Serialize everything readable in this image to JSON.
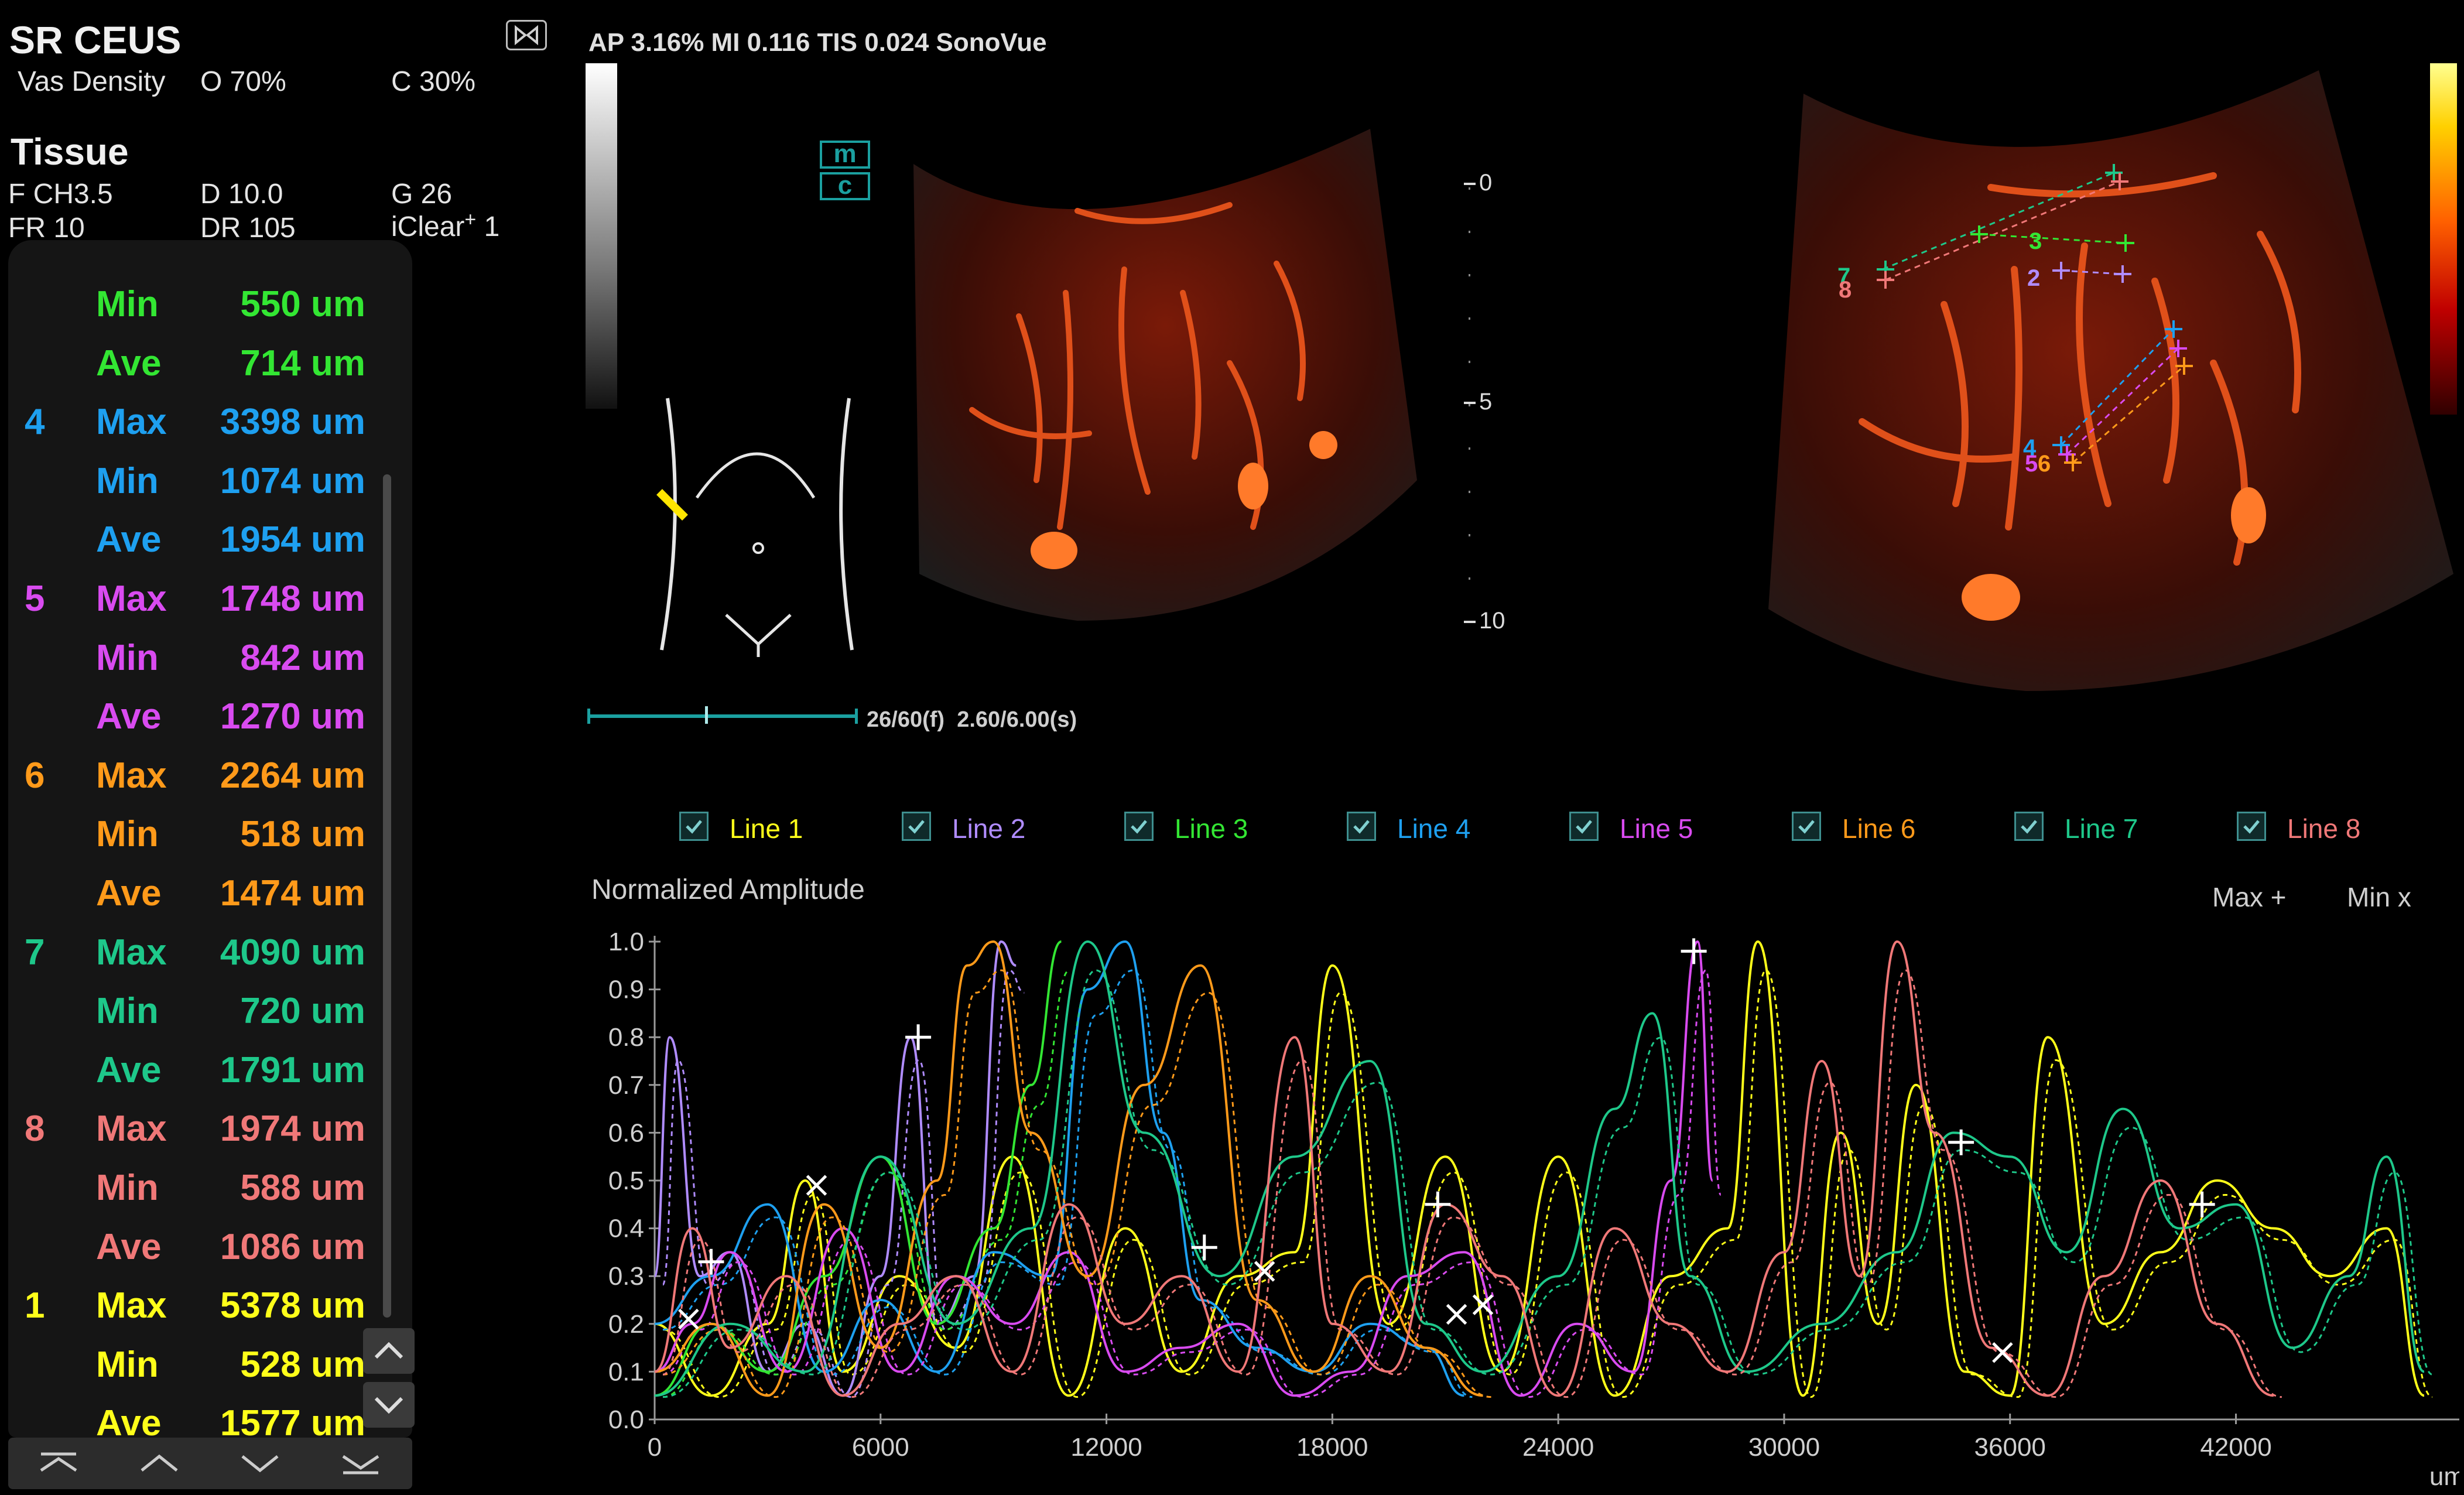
{
  "header": {
    "mode": "SR CEUS",
    "vas_density_label": "Vas Density",
    "o_value": "O 70%",
    "c_value": "C 30%",
    "tissue_title": "Tissue",
    "freq": "F CH3.5",
    "depth": "D 10.0",
    "gain": "G 26",
    "frame_rate": "FR 10",
    "dynamic_range": "DR 105",
    "iclear": "iClear",
    "iclear_sup": "+",
    "iclear_level": "1"
  },
  "measurements": [
    {
      "num": "",
      "label": "Min",
      "value": "550 um",
      "color": "#33e633"
    },
    {
      "num": "",
      "label": "Ave",
      "value": "714 um",
      "color": "#33e633"
    },
    {
      "num": "4",
      "label": "Max",
      "value": "3398 um",
      "color": "#1ea0f0"
    },
    {
      "num": "",
      "label": "Min",
      "value": "1074 um",
      "color": "#1ea0f0"
    },
    {
      "num": "",
      "label": "Ave",
      "value": "1954 um",
      "color": "#1ea0f0"
    },
    {
      "num": "5",
      "label": "Max",
      "value": "1748 um",
      "color": "#d94bf0"
    },
    {
      "num": "",
      "label": "Min",
      "value": "842 um",
      "color": "#d94bf0"
    },
    {
      "num": "",
      "label": "Ave",
      "value": "1270 um",
      "color": "#d94bf0"
    },
    {
      "num": "6",
      "label": "Max",
      "value": "2264 um",
      "color": "#ff9a1a"
    },
    {
      "num": "",
      "label": "Min",
      "value": "518 um",
      "color": "#ff9a1a"
    },
    {
      "num": "",
      "label": "Ave",
      "value": "1474 um",
      "color": "#ff9a1a"
    },
    {
      "num": "7",
      "label": "Max",
      "value": "4090 um",
      "color": "#1ec88a"
    },
    {
      "num": "",
      "label": "Min",
      "value": "720 um",
      "color": "#1ec88a"
    },
    {
      "num": "",
      "label": "Ave",
      "value": "1791 um",
      "color": "#1ec88a"
    },
    {
      "num": "8",
      "label": "Max",
      "value": "1974 um",
      "color": "#f07878"
    },
    {
      "num": "",
      "label": "Min",
      "value": "588 um",
      "color": "#f07878"
    },
    {
      "num": "",
      "label": "Ave",
      "value": "1086 um",
      "color": "#f07878"
    },
    {
      "num": "1",
      "label": "Max",
      "value": "5378 um",
      "color": "#ffff1a"
    },
    {
      "num": "",
      "label": "Min",
      "value": "528 um",
      "color": "#ffff1a"
    },
    {
      "num": "",
      "label": "Ave",
      "value": "1577 um",
      "color": "#ffff1a"
    }
  ],
  "info_bar": "AP 3.16%  MI 0.116 TIS 0.024  SonoVue",
  "logo_letters": [
    "m",
    "c"
  ],
  "depth_scale": [
    "0",
    "5",
    "10"
  ],
  "cine": {
    "frame": "26/60(f)",
    "time": "2.60/6.00(s)",
    "position": 0.433
  },
  "left_image_labels": [],
  "right_image_labels": [
    "7",
    "8",
    "3",
    "2",
    "4",
    "5",
    "6"
  ],
  "lines": [
    {
      "label": "Line 1",
      "color": "#ffff1a",
      "checked": true
    },
    {
      "label": "Line 2",
      "color": "#b08cff",
      "checked": true
    },
    {
      "label": "Line 3",
      "color": "#33e633",
      "checked": true
    },
    {
      "label": "Line 4",
      "color": "#1ea0f0",
      "checked": true
    },
    {
      "label": "Line 5",
      "color": "#d94bf0",
      "checked": true
    },
    {
      "label": "Line 6",
      "color": "#ff9a1a",
      "checked": true
    },
    {
      "label": "Line 7",
      "color": "#1ec88a",
      "checked": true
    },
    {
      "label": "Line 8",
      "color": "#f07878",
      "checked": true
    }
  ],
  "legend": {
    "max": "Max +",
    "min": "Min x"
  },
  "chart_data": {
    "type": "line",
    "title": "Normalized Amplitude",
    "xlabel": "um",
    "ylabel": "",
    "xlim": [
      0,
      47000
    ],
    "ylim": [
      0,
      1.0
    ],
    "xticks": [
      0,
      6000,
      12000,
      18000,
      24000,
      30000,
      36000,
      42000
    ],
    "yticks": [
      0.0,
      0.1,
      0.2,
      0.3,
      0.4,
      0.5,
      0.6,
      0.7,
      0.8,
      0.9,
      1.0
    ],
    "series": [
      {
        "name": "Line 1",
        "color": "#ffff1a",
        "x": [
          0,
          1500,
          3000,
          4000,
          5000,
          6500,
          8000,
          9500,
          11000,
          12500,
          14000,
          15500,
          17000,
          18000,
          19500,
          21000,
          22500,
          24000,
          25500,
          27000,
          28500,
          29300,
          30500,
          31500,
          32500,
          33500,
          34800,
          36000,
          37000,
          38500,
          40000,
          41500,
          43000,
          44500,
          46000,
          47000
        ],
        "y": [
          0.2,
          0.05,
          0.2,
          0.5,
          0.1,
          0.3,
          0.15,
          0.55,
          0.05,
          0.4,
          0.1,
          0.3,
          0.35,
          0.95,
          0.2,
          0.55,
          0.1,
          0.55,
          0.05,
          0.3,
          0.4,
          1.0,
          0.05,
          0.6,
          0.2,
          0.7,
          0.1,
          0.05,
          0.8,
          0.2,
          0.35,
          0.5,
          0.4,
          0.3,
          0.4,
          0.05
        ]
      },
      {
        "name": "Line 2",
        "color": "#b08cff",
        "x": [
          0,
          400,
          1200,
          2000,
          3000,
          4000,
          5000,
          6000,
          6800,
          7500,
          8500,
          9200,
          9600
        ],
        "y": [
          0.3,
          0.8,
          0.3,
          0.35,
          0.1,
          0.2,
          0.05,
          0.3,
          0.8,
          0.2,
          0.3,
          1.0,
          0.95
        ]
      },
      {
        "name": "Line 3",
        "color": "#33e633",
        "x": [
          0,
          1500,
          3000,
          4500,
          6000,
          7500,
          9000,
          10000,
          10800
        ],
        "y": [
          0.05,
          0.2,
          0.1,
          0.3,
          0.55,
          0.2,
          0.4,
          0.7,
          1.0
        ]
      },
      {
        "name": "Line 4",
        "color": "#1ea0f0",
        "x": [
          0,
          1500,
          3000,
          4500,
          6000,
          7500,
          9000,
          10500,
          11500,
          12500,
          13500,
          14500,
          16000,
          17500,
          19000,
          20500,
          21500
        ],
        "y": [
          0.2,
          0.3,
          0.45,
          0.1,
          0.25,
          0.1,
          0.35,
          0.3,
          0.9,
          1.0,
          0.6,
          0.25,
          0.15,
          0.1,
          0.2,
          0.15,
          0.05
        ]
      },
      {
        "name": "Line 5",
        "color": "#d94bf0",
        "x": [
          0,
          1000,
          2000,
          3500,
          5000,
          6500,
          8000,
          9500,
          11000,
          12500,
          14000,
          15500,
          17000,
          18500,
          20000,
          21500,
          23000,
          24500,
          26000,
          27000,
          27700,
          28100
        ],
        "y": [
          0.1,
          0.2,
          0.35,
          0.1,
          0.4,
          0.1,
          0.3,
          0.2,
          0.35,
          0.1,
          0.15,
          0.2,
          0.05,
          0.1,
          0.3,
          0.35,
          0.05,
          0.2,
          0.1,
          0.5,
          1.0,
          0.5
        ]
      },
      {
        "name": "Line 6",
        "color": "#ff9a1a",
        "x": [
          0,
          1500,
          3000,
          4500,
          6000,
          7500,
          8300,
          9000,
          10000,
          11500,
          13000,
          14500,
          16000,
          17500,
          19000,
          20500,
          22000
        ],
        "y": [
          0.1,
          0.2,
          0.05,
          0.45,
          0.15,
          0.5,
          0.95,
          1.0,
          0.6,
          0.3,
          0.7,
          0.95,
          0.25,
          0.1,
          0.3,
          0.15,
          0.05
        ]
      },
      {
        "name": "Line 7",
        "color": "#1ec88a",
        "x": [
          0,
          2000,
          4000,
          6000,
          8000,
          10000,
          11500,
          13000,
          15000,
          17000,
          19000,
          20500,
          22000,
          24000,
          25500,
          26500,
          27500,
          29000,
          31000,
          33000,
          34500,
          36000,
          37500,
          39000,
          40500,
          42000,
          43500,
          45000,
          46000,
          47000
        ],
        "y": [
          0.05,
          0.2,
          0.1,
          0.55,
          0.2,
          0.4,
          1.0,
          0.6,
          0.3,
          0.55,
          0.75,
          0.2,
          0.1,
          0.3,
          0.65,
          0.85,
          0.3,
          0.1,
          0.2,
          0.35,
          0.6,
          0.55,
          0.35,
          0.65,
          0.4,
          0.45,
          0.15,
          0.3,
          0.55,
          0.1
        ]
      },
      {
        "name": "Line 8",
        "color": "#f07878",
        "x": [
          0,
          1000,
          2000,
          3500,
          5000,
          6500,
          8000,
          9500,
          11000,
          12500,
          14000,
          15500,
          17000,
          18000,
          19500,
          21000,
          22500,
          24000,
          25500,
          27000,
          28500,
          30000,
          31000,
          32000,
          33000,
          34000,
          35500,
          37000,
          38500,
          40000,
          41500,
          43000
        ],
        "y": [
          0.1,
          0.4,
          0.15,
          0.3,
          0.05,
          0.2,
          0.3,
          0.1,
          0.45,
          0.2,
          0.3,
          0.1,
          0.8,
          0.2,
          0.1,
          0.45,
          0.3,
          0.05,
          0.4,
          0.2,
          0.1,
          0.35,
          0.75,
          0.3,
          1.0,
          0.6,
          0.15,
          0.05,
          0.3,
          0.5,
          0.2,
          0.05
        ]
      }
    ],
    "markers_max": [
      [
        1500,
        0.33
      ],
      [
        7000,
        0.8
      ],
      [
        14600,
        0.36
      ],
      [
        20800,
        0.45
      ],
      [
        27600,
        0.98
      ],
      [
        34700,
        0.58
      ],
      [
        41100,
        0.45
      ]
    ],
    "markers_min": [
      [
        900,
        0.21
      ],
      [
        4300,
        0.49
      ],
      [
        16200,
        0.31
      ],
      [
        21300,
        0.22
      ],
      [
        22000,
        0.24
      ],
      [
        35800,
        0.14
      ]
    ]
  }
}
